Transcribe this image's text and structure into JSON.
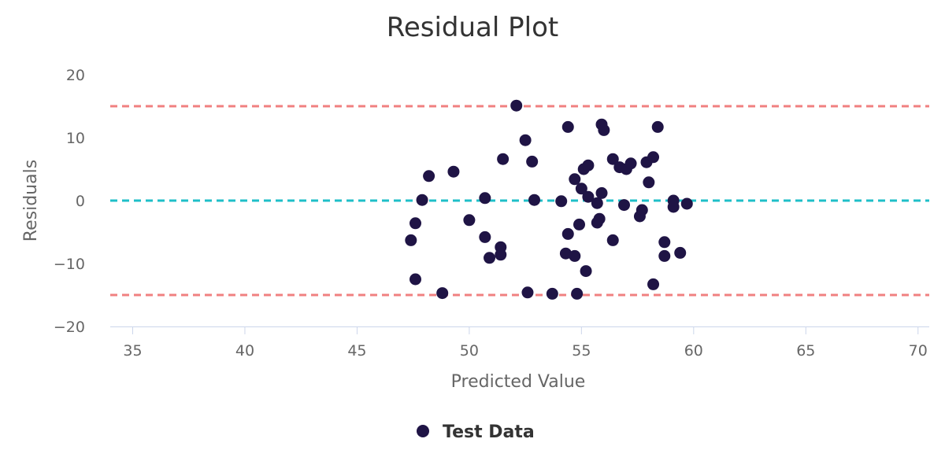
{
  "chart_data": {
    "type": "scatter",
    "title": "Residual Plot",
    "xlabel": "Predicted Value",
    "ylabel": "Residuals",
    "xlim": [
      34,
      70.5
    ],
    "ylim": [
      -20,
      20
    ],
    "x_ticks": [
      "35",
      "40",
      "45",
      "50",
      "55",
      "60",
      "65",
      "70"
    ],
    "y_ticks": [
      "20",
      "10",
      "0",
      "−10",
      "−20"
    ],
    "x_tick_values": [
      35,
      40,
      45,
      50,
      55,
      60,
      65,
      70
    ],
    "y_tick_values": [
      20,
      10,
      0,
      -10,
      -20
    ],
    "reference_lines": [
      {
        "y": 15,
        "color": "#f08080",
        "style": "dashed"
      },
      {
        "y": 0,
        "color": "#1fbfc8",
        "style": "dashed"
      },
      {
        "y": -15,
        "color": "#f08080",
        "style": "dashed"
      }
    ],
    "legend_position": "bottom-center",
    "series": [
      {
        "name": "Test Data",
        "color": "#1f1445",
        "points": [
          [
            47.4,
            -6.3
          ],
          [
            47.6,
            -3.6
          ],
          [
            47.6,
            -12.5
          ],
          [
            47.9,
            0.1
          ],
          [
            48.2,
            3.9
          ],
          [
            48.8,
            -14.7
          ],
          [
            49.3,
            4.6
          ],
          [
            50.0,
            -3.1
          ],
          [
            50.7,
            0.4
          ],
          [
            50.7,
            -5.8
          ],
          [
            50.9,
            -9.1
          ],
          [
            51.4,
            -7.4
          ],
          [
            51.4,
            -8.6
          ],
          [
            51.5,
            6.6
          ],
          [
            52.1,
            15.1
          ],
          [
            52.5,
            9.6
          ],
          [
            52.6,
            -14.6
          ],
          [
            52.8,
            6.2
          ],
          [
            52.9,
            0.1
          ],
          [
            53.7,
            -14.8
          ],
          [
            54.1,
            -0.1
          ],
          [
            54.3,
            -8.4
          ],
          [
            54.4,
            -5.3
          ],
          [
            54.4,
            11.7
          ],
          [
            54.7,
            -8.8
          ],
          [
            54.7,
            3.4
          ],
          [
            54.8,
            -14.8
          ],
          [
            54.9,
            -3.8
          ],
          [
            55.0,
            1.9
          ],
          [
            55.1,
            5.0
          ],
          [
            55.2,
            -11.2
          ],
          [
            55.3,
            5.6
          ],
          [
            55.3,
            0.6
          ],
          [
            55.7,
            -3.5
          ],
          [
            55.7,
            -0.4
          ],
          [
            55.8,
            -2.9
          ],
          [
            55.9,
            12.1
          ],
          [
            55.9,
            1.2
          ],
          [
            56.0,
            11.2
          ],
          [
            56.4,
            6.6
          ],
          [
            56.4,
            -6.3
          ],
          [
            56.7,
            5.3
          ],
          [
            56.9,
            -0.7
          ],
          [
            57.0,
            5.0
          ],
          [
            57.2,
            5.9
          ],
          [
            57.6,
            -2.5
          ],
          [
            57.7,
            -1.5
          ],
          [
            57.9,
            6.1
          ],
          [
            58.0,
            2.9
          ],
          [
            58.2,
            6.9
          ],
          [
            58.2,
            -13.3
          ],
          [
            58.4,
            11.7
          ],
          [
            58.7,
            -6.6
          ],
          [
            58.7,
            -8.8
          ],
          [
            59.1,
            0.0
          ],
          [
            59.1,
            -1.0
          ],
          [
            59.4,
            -8.3
          ],
          [
            59.7,
            -0.5
          ]
        ]
      }
    ]
  }
}
